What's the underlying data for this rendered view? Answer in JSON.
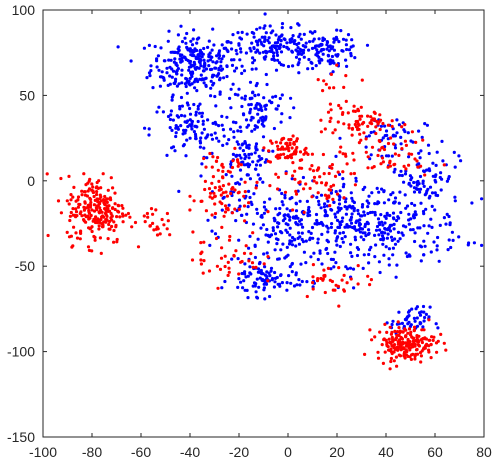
{
  "chart_data": {
    "type": "scatter",
    "title": "",
    "xlabel": "",
    "ylabel": "",
    "xlim": [
      -100,
      80
    ],
    "ylim": [
      -150,
      100
    ],
    "x_ticks": [
      -100,
      -80,
      -60,
      -40,
      -20,
      0,
      20,
      40,
      60,
      80
    ],
    "y_ticks": [
      -150,
      -100,
      -50,
      0,
      50,
      100
    ],
    "x_tick_labels": [
      "-100",
      "-80",
      "-60",
      "-40",
      "-20",
      "0",
      "20",
      "40",
      "60",
      "80"
    ],
    "y_tick_labels": [
      "-150",
      "-100",
      "-50",
      "0",
      "50",
      "100"
    ],
    "grid": false,
    "legend": "none",
    "series": [
      {
        "color": "#0000ff",
        "clusters": [
          {
            "center": [
              -38,
              68
            ],
            "spread": [
              9,
              9
            ],
            "count": 260
          },
          {
            "center": [
              -5,
              78
            ],
            "spread": [
              10,
              6
            ],
            "count": 170
          },
          {
            "center": [
              18,
              76
            ],
            "spread": [
              6,
              5
            ],
            "count": 90
          },
          {
            "center": [
              -40,
              30
            ],
            "spread": [
              8,
              9
            ],
            "count": 110
          },
          {
            "center": [
              -12,
              42
            ],
            "spread": [
              6,
              8
            ],
            "count": 90
          },
          {
            "center": [
              -18,
              15
            ],
            "spread": [
              5,
              6
            ],
            "count": 60
          },
          {
            "center": [
              35,
              -25
            ],
            "spread": [
              18,
              12
            ],
            "count": 330
          },
          {
            "center": [
              5,
              -30
            ],
            "spread": [
              14,
              13
            ],
            "count": 190
          },
          {
            "center": [
              -10,
              -58
            ],
            "spread": [
              7,
              5
            ],
            "count": 90
          },
          {
            "center": [
              55,
              5
            ],
            "spread": [
              7,
              8
            ],
            "count": 70
          },
          {
            "center": [
              40,
              25
            ],
            "spread": [
              8,
              7
            ],
            "count": 50
          },
          {
            "center": [
              50,
              -82
            ],
            "spread": [
              4,
              4
            ],
            "count": 50
          },
          {
            "center": [
              -20,
              -10
            ],
            "spread": [
              6,
              8
            ],
            "count": 40
          }
        ]
      },
      {
        "color": "#ff0000",
        "clusters": [
          {
            "center": [
              -78,
              -17
            ],
            "spread": [
              6,
              10
            ],
            "count": 230
          },
          {
            "center": [
              48,
              -95
            ],
            "spread": [
              6,
              5
            ],
            "count": 200
          },
          {
            "center": [
              0,
              18
            ],
            "spread": [
              4,
              4
            ],
            "count": 65
          },
          {
            "center": [
              28,
              35
            ],
            "spread": [
              7,
              5
            ],
            "count": 70
          },
          {
            "center": [
              -28,
              -10
            ],
            "spread": [
              6,
              8
            ],
            "count": 60
          },
          {
            "center": [
              10,
              0
            ],
            "spread": [
              10,
              8
            ],
            "count": 65
          },
          {
            "center": [
              40,
              15
            ],
            "spread": [
              10,
              7
            ],
            "count": 55
          },
          {
            "center": [
              -25,
              -45
            ],
            "spread": [
              7,
              8
            ],
            "count": 40
          },
          {
            "center": [
              -55,
              -25
            ],
            "spread": [
              4,
              4
            ],
            "count": 25
          },
          {
            "center": [
              -25,
              10
            ],
            "spread": [
              5,
              4
            ],
            "count": 25
          },
          {
            "center": [
              20,
              -58
            ],
            "spread": [
              8,
              5
            ],
            "count": 35
          },
          {
            "center": [
              20,
              60
            ],
            "spread": [
              4,
              4
            ],
            "count": 10
          }
        ]
      }
    ]
  }
}
